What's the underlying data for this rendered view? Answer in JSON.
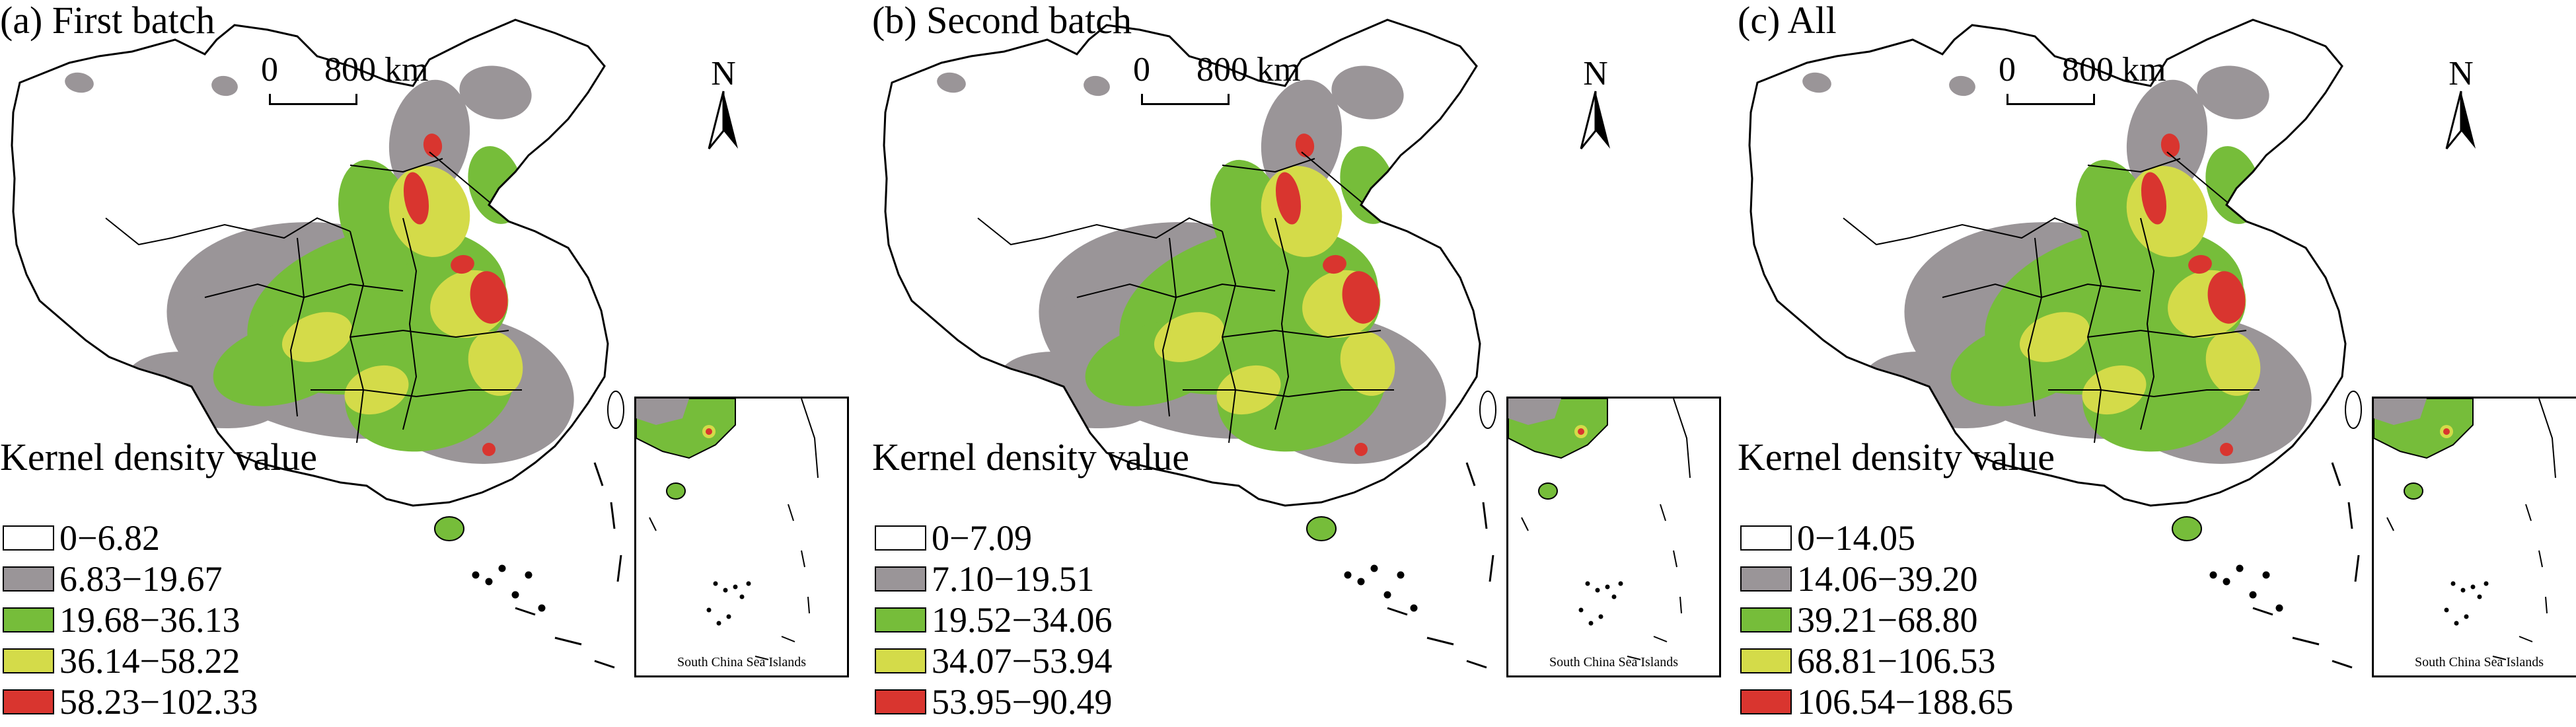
{
  "colors": {
    "class1": "#ffffff",
    "class2": "#9a9598",
    "class3": "#76bd3a",
    "class4": "#d4db49",
    "class5": "#d9352f"
  },
  "panels": [
    {
      "title": "(a) First batch",
      "scale": {
        "zero": "0",
        "distance": "800 km"
      },
      "north": "N",
      "legend_title": "Kernel density value",
      "legend": [
        "0−6.82",
        "6.83−19.67",
        "19.68−36.13",
        "36.14−58.22",
        "58.23−102.33"
      ],
      "inset_caption": "South China Sea Islands"
    },
    {
      "title": "(b) Second batch",
      "scale": {
        "zero": "0",
        "distance": "800 km"
      },
      "north": "N",
      "legend_title": "Kernel density value",
      "legend": [
        "0−7.09",
        "7.10−19.51",
        "19.52−34.06",
        "34.07−53.94",
        "53.95−90.49"
      ],
      "inset_caption": "South China Sea Islands"
    },
    {
      "title": "(c) All",
      "scale": {
        "zero": "0",
        "distance": "800 km"
      },
      "north": "N",
      "legend_title": "Kernel density value",
      "legend": [
        "0−14.05",
        "14.06−39.20",
        "39.21−68.80",
        "68.81−106.53",
        "106.54−188.65"
      ],
      "inset_caption": "South China Sea Islands"
    }
  ]
}
